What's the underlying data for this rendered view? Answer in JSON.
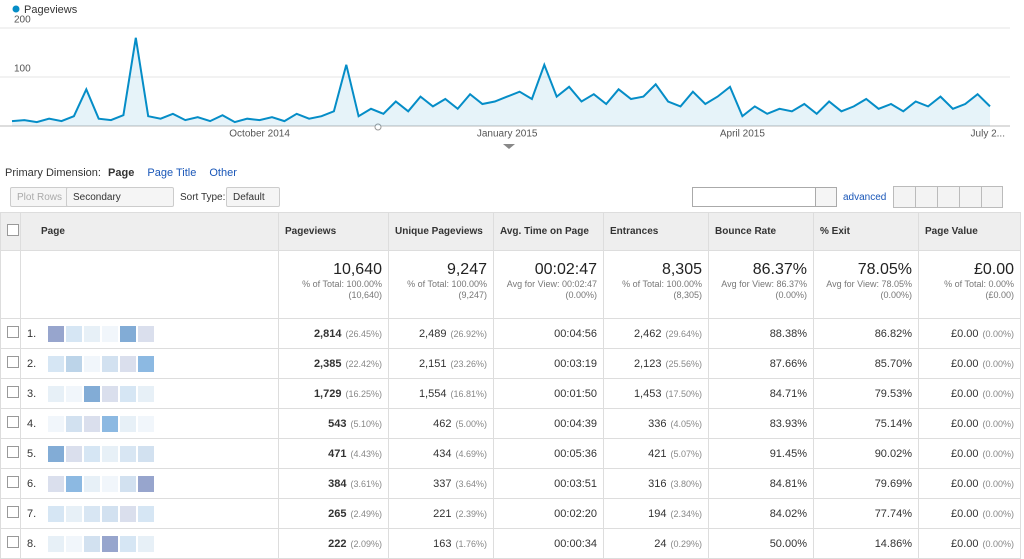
{
  "chart_data": {
    "type": "line",
    "series": [
      {
        "name": "Pageviews",
        "color": "#058dc7",
        "values": [
          10,
          12,
          8,
          15,
          10,
          20,
          75,
          15,
          12,
          22,
          180,
          20,
          15,
          25,
          12,
          18,
          10,
          22,
          8,
          15,
          12,
          18,
          10,
          25,
          15,
          20,
          30,
          125,
          20,
          35,
          25,
          50,
          30,
          60,
          40,
          55,
          35,
          65,
          45,
          50,
          60,
          70,
          55,
          125,
          60,
          80,
          50,
          65,
          45,
          75,
          55,
          60,
          85,
          50,
          40,
          70,
          45,
          60,
          80,
          20,
          40,
          25,
          35,
          30,
          45,
          25,
          50,
          30,
          40,
          55,
          35,
          45,
          30,
          50,
          40,
          60,
          35,
          45,
          65,
          40
        ]
      }
    ],
    "categories": [
      null,
      null,
      null,
      null,
      null,
      null,
      null,
      null,
      null,
      null,
      null,
      null,
      null,
      null,
      null,
      null,
      null,
      null,
      null,
      null,
      "October 2014",
      null,
      null,
      null,
      null,
      null,
      null,
      null,
      null,
      null,
      null,
      null,
      null,
      null,
      null,
      null,
      null,
      null,
      null,
      null,
      "January 2015",
      null,
      null,
      null,
      null,
      null,
      null,
      null,
      null,
      null,
      null,
      null,
      null,
      null,
      null,
      null,
      null,
      null,
      null,
      "April 2015",
      null,
      null,
      null,
      null,
      null,
      null,
      null,
      null,
      null,
      null,
      null,
      null,
      null,
      null,
      null,
      null,
      null,
      null,
      null,
      "July 2..."
    ],
    "ylim": [
      0,
      200
    ],
    "yticks": [
      100,
      200
    ],
    "grid": true
  },
  "toolbar": {
    "primary_label": "Primary Dimension:",
    "primary_active": "Page",
    "primary_options": [
      "Page Title",
      "Other"
    ],
    "plot_rows": "Plot Rows",
    "secondary": "Secondary dimension",
    "sort_label": "Sort Type:",
    "sort_value": "Default",
    "advanced": "advanced"
  },
  "table": {
    "headers": [
      "Page",
      "Pageviews",
      "Unique Pageviews",
      "Avg. Time on Page",
      "Entrances",
      "Bounce Rate",
      "% Exit",
      "Page Value"
    ],
    "totals": [
      {
        "value": "10,640",
        "note": "% of Total: 100.00%",
        "base": "(10,640)"
      },
      {
        "value": "9,247",
        "note": "% of Total: 100.00%",
        "base": "(9,247)"
      },
      {
        "value": "00:02:47",
        "note": "Avg for View: 00:02:47",
        "base": "(0.00%)"
      },
      {
        "value": "8,305",
        "note": "% of Total: 100.00%",
        "base": "(8,305)"
      },
      {
        "value": "86.37%",
        "note": "Avg for View: 86.37%",
        "base": "(0.00%)"
      },
      {
        "value": "78.05%",
        "note": "Avg for View: 78.05%",
        "base": "(0.00%)"
      },
      {
        "value": "£0.00",
        "note": "% of Total: 0.00%",
        "base": "(£0.00)"
      }
    ],
    "rows": [
      [
        "1.",
        "2,814",
        "(26.45%)",
        "2,489",
        "(26.92%)",
        "00:04:56",
        "2,462",
        "(29.64%)",
        "88.38%",
        "86.82%",
        "£0.00",
        "(0.00%)"
      ],
      [
        "2.",
        "2,385",
        "(22.42%)",
        "2,151",
        "(23.26%)",
        "00:03:19",
        "2,123",
        "(25.56%)",
        "87.66%",
        "85.70%",
        "£0.00",
        "(0.00%)"
      ],
      [
        "3.",
        "1,729",
        "(16.25%)",
        "1,554",
        "(16.81%)",
        "00:01:50",
        "1,453",
        "(17.50%)",
        "84.71%",
        "79.53%",
        "£0.00",
        "(0.00%)"
      ],
      [
        "4.",
        "543",
        "(5.10%)",
        "462",
        "(5.00%)",
        "00:04:39",
        "336",
        "(4.05%)",
        "83.93%",
        "75.14%",
        "£0.00",
        "(0.00%)"
      ],
      [
        "5.",
        "471",
        "(4.43%)",
        "434",
        "(4.69%)",
        "00:05:36",
        "421",
        "(5.07%)",
        "91.45%",
        "90.02%",
        "£0.00",
        "(0.00%)"
      ],
      [
        "6.",
        "384",
        "(3.61%)",
        "337",
        "(3.64%)",
        "00:03:51",
        "316",
        "(3.80%)",
        "84.81%",
        "79.69%",
        "£0.00",
        "(0.00%)"
      ],
      [
        "7.",
        "265",
        "(2.49%)",
        "221",
        "(2.39%)",
        "00:02:20",
        "194",
        "(2.34%)",
        "84.02%",
        "77.74%",
        "£0.00",
        "(0.00%)"
      ],
      [
        "8.",
        "222",
        "(2.09%)",
        "163",
        "(1.76%)",
        "00:00:34",
        "24",
        "(0.29%)",
        "50.00%",
        "14.86%",
        "£0.00",
        "(0.00%)"
      ]
    ]
  }
}
